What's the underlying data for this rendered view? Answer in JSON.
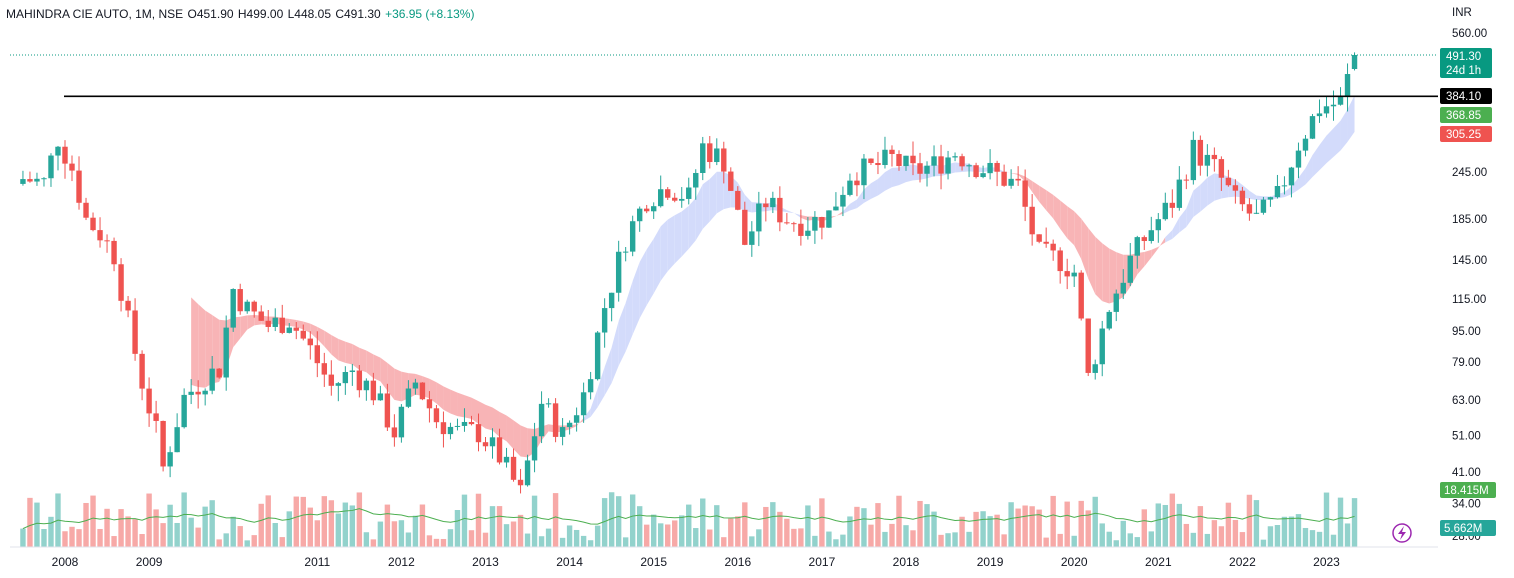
{
  "header": {
    "symbol": "MAHINDRA CIE AUTO, 1M, NSE",
    "open": "O451.90",
    "high": "H499.00",
    "low": "L448.05",
    "close": "C491.30",
    "change": "+36.95 (+8.13%)"
  },
  "currency": "INR",
  "colors": {
    "up": "#26a69a",
    "down": "#ef5350",
    "ema_up": "#d3dbfb",
    "ema_down": "#f8b4b6",
    "line": "#000000",
    "vol_ma": "#4caf50"
  },
  "price_tags": [
    {
      "label": "491.30",
      "sub": "24d 1h",
      "color": "#089981",
      "value": 491.3
    },
    {
      "label": "384.10",
      "color": "#000000",
      "value": 384.1
    },
    {
      "label": "368.85",
      "color": "#4caf50",
      "value": 368.85
    },
    {
      "label": "305.25",
      "color": "#ef5350",
      "value": 305.25
    }
  ],
  "volume_tags": [
    {
      "label": "18.415M",
      "color": "#4caf50",
      "value": 18.415
    },
    {
      "label": "5.662M",
      "color": "#26a69a",
      "value": 5.662
    }
  ],
  "chart_data": {
    "type": "candlestick",
    "title": "MAHINDRA CIE AUTO, 1M, NSE",
    "y_scale": "log",
    "y_ticks": [
      560,
      245,
      185,
      145,
      115,
      95,
      79,
      63,
      51,
      41,
      34,
      28
    ],
    "y_tick_labels": [
      "560.00",
      "245.00",
      "185.00",
      "145.00",
      "115.00",
      "95.00",
      "79.00",
      "63.00",
      "51.00",
      "41.00",
      "34.00",
      "28.00"
    ],
    "x_ticks": [
      "2008",
      "2009",
      "2011",
      "2012",
      "2013",
      "2014",
      "2015",
      "2016",
      "2017",
      "2018",
      "2019",
      "2020",
      "2021",
      "2022",
      "2023"
    ],
    "x_tick_years": [
      2008,
      2009,
      2011,
      2012,
      2013,
      2014,
      2015,
      2016,
      2017,
      2018,
      2019,
      2020,
      2021,
      2022,
      2023
    ],
    "horizontal_line": 384.1,
    "series": [
      {
        "name": "close",
        "points": [
          [
            "2007-07",
            235
          ],
          [
            "2007-10",
            230
          ],
          [
            "2007-12",
            300
          ],
          [
            "2008-02",
            250
          ],
          [
            "2008-04",
            185
          ],
          [
            "2008-06",
            170
          ],
          [
            "2008-08",
            150
          ],
          [
            "2008-10",
            100
          ],
          [
            "2008-12",
            70
          ],
          [
            "2009-02",
            52
          ],
          [
            "2009-03",
            42
          ],
          [
            "2009-06",
            64
          ],
          [
            "2009-09",
            72
          ],
          [
            "2009-11",
            76
          ],
          [
            "2010-01",
            122
          ],
          [
            "2010-03",
            108
          ],
          [
            "2010-06",
            98
          ],
          [
            "2010-09",
            102
          ],
          [
            "2010-12",
            85
          ],
          [
            "2011-03",
            68
          ],
          [
            "2011-06",
            75
          ],
          [
            "2011-09",
            66
          ],
          [
            "2011-12",
            52
          ],
          [
            "2012-03",
            70
          ],
          [
            "2012-06",
            56
          ],
          [
            "2012-09",
            52
          ],
          [
            "2012-12",
            52
          ],
          [
            "2013-03",
            45
          ],
          [
            "2013-06",
            36
          ],
          [
            "2013-09",
            62
          ],
          [
            "2013-12",
            51
          ],
          [
            "2014-03",
            65
          ],
          [
            "2014-06",
            110
          ],
          [
            "2014-09",
            165
          ],
          [
            "2014-12",
            210
          ],
          [
            "2015-03",
            225
          ],
          [
            "2015-06",
            210
          ],
          [
            "2015-08",
            285
          ],
          [
            "2015-11",
            262
          ],
          [
            "2016-02",
            160
          ],
          [
            "2016-05",
            205
          ],
          [
            "2016-08",
            185
          ],
          [
            "2016-11",
            180
          ],
          [
            "2017-02",
            190
          ],
          [
            "2017-05",
            242
          ],
          [
            "2017-08",
            250
          ],
          [
            "2017-11",
            265
          ],
          [
            "2018-02",
            245
          ],
          [
            "2018-05",
            255
          ],
          [
            "2018-08",
            275
          ],
          [
            "2018-11",
            255
          ],
          [
            "2019-02",
            240
          ],
          [
            "2019-05",
            225
          ],
          [
            "2019-08",
            150
          ],
          [
            "2019-11",
            145
          ],
          [
            "2020-01",
            135
          ],
          [
            "2020-03",
            72
          ],
          [
            "2020-06",
            110
          ],
          [
            "2020-09",
            145
          ],
          [
            "2020-12",
            175
          ],
          [
            "2021-03",
            205
          ],
          [
            "2021-06",
            280
          ],
          [
            "2021-09",
            250
          ],
          [
            "2021-12",
            205
          ],
          [
            "2022-03",
            185
          ],
          [
            "2022-06",
            210
          ],
          [
            "2022-09",
            290
          ],
          [
            "2022-12",
            360
          ],
          [
            "2023-03",
            370
          ],
          [
            "2023-05",
            491.3
          ]
        ]
      }
    ]
  }
}
